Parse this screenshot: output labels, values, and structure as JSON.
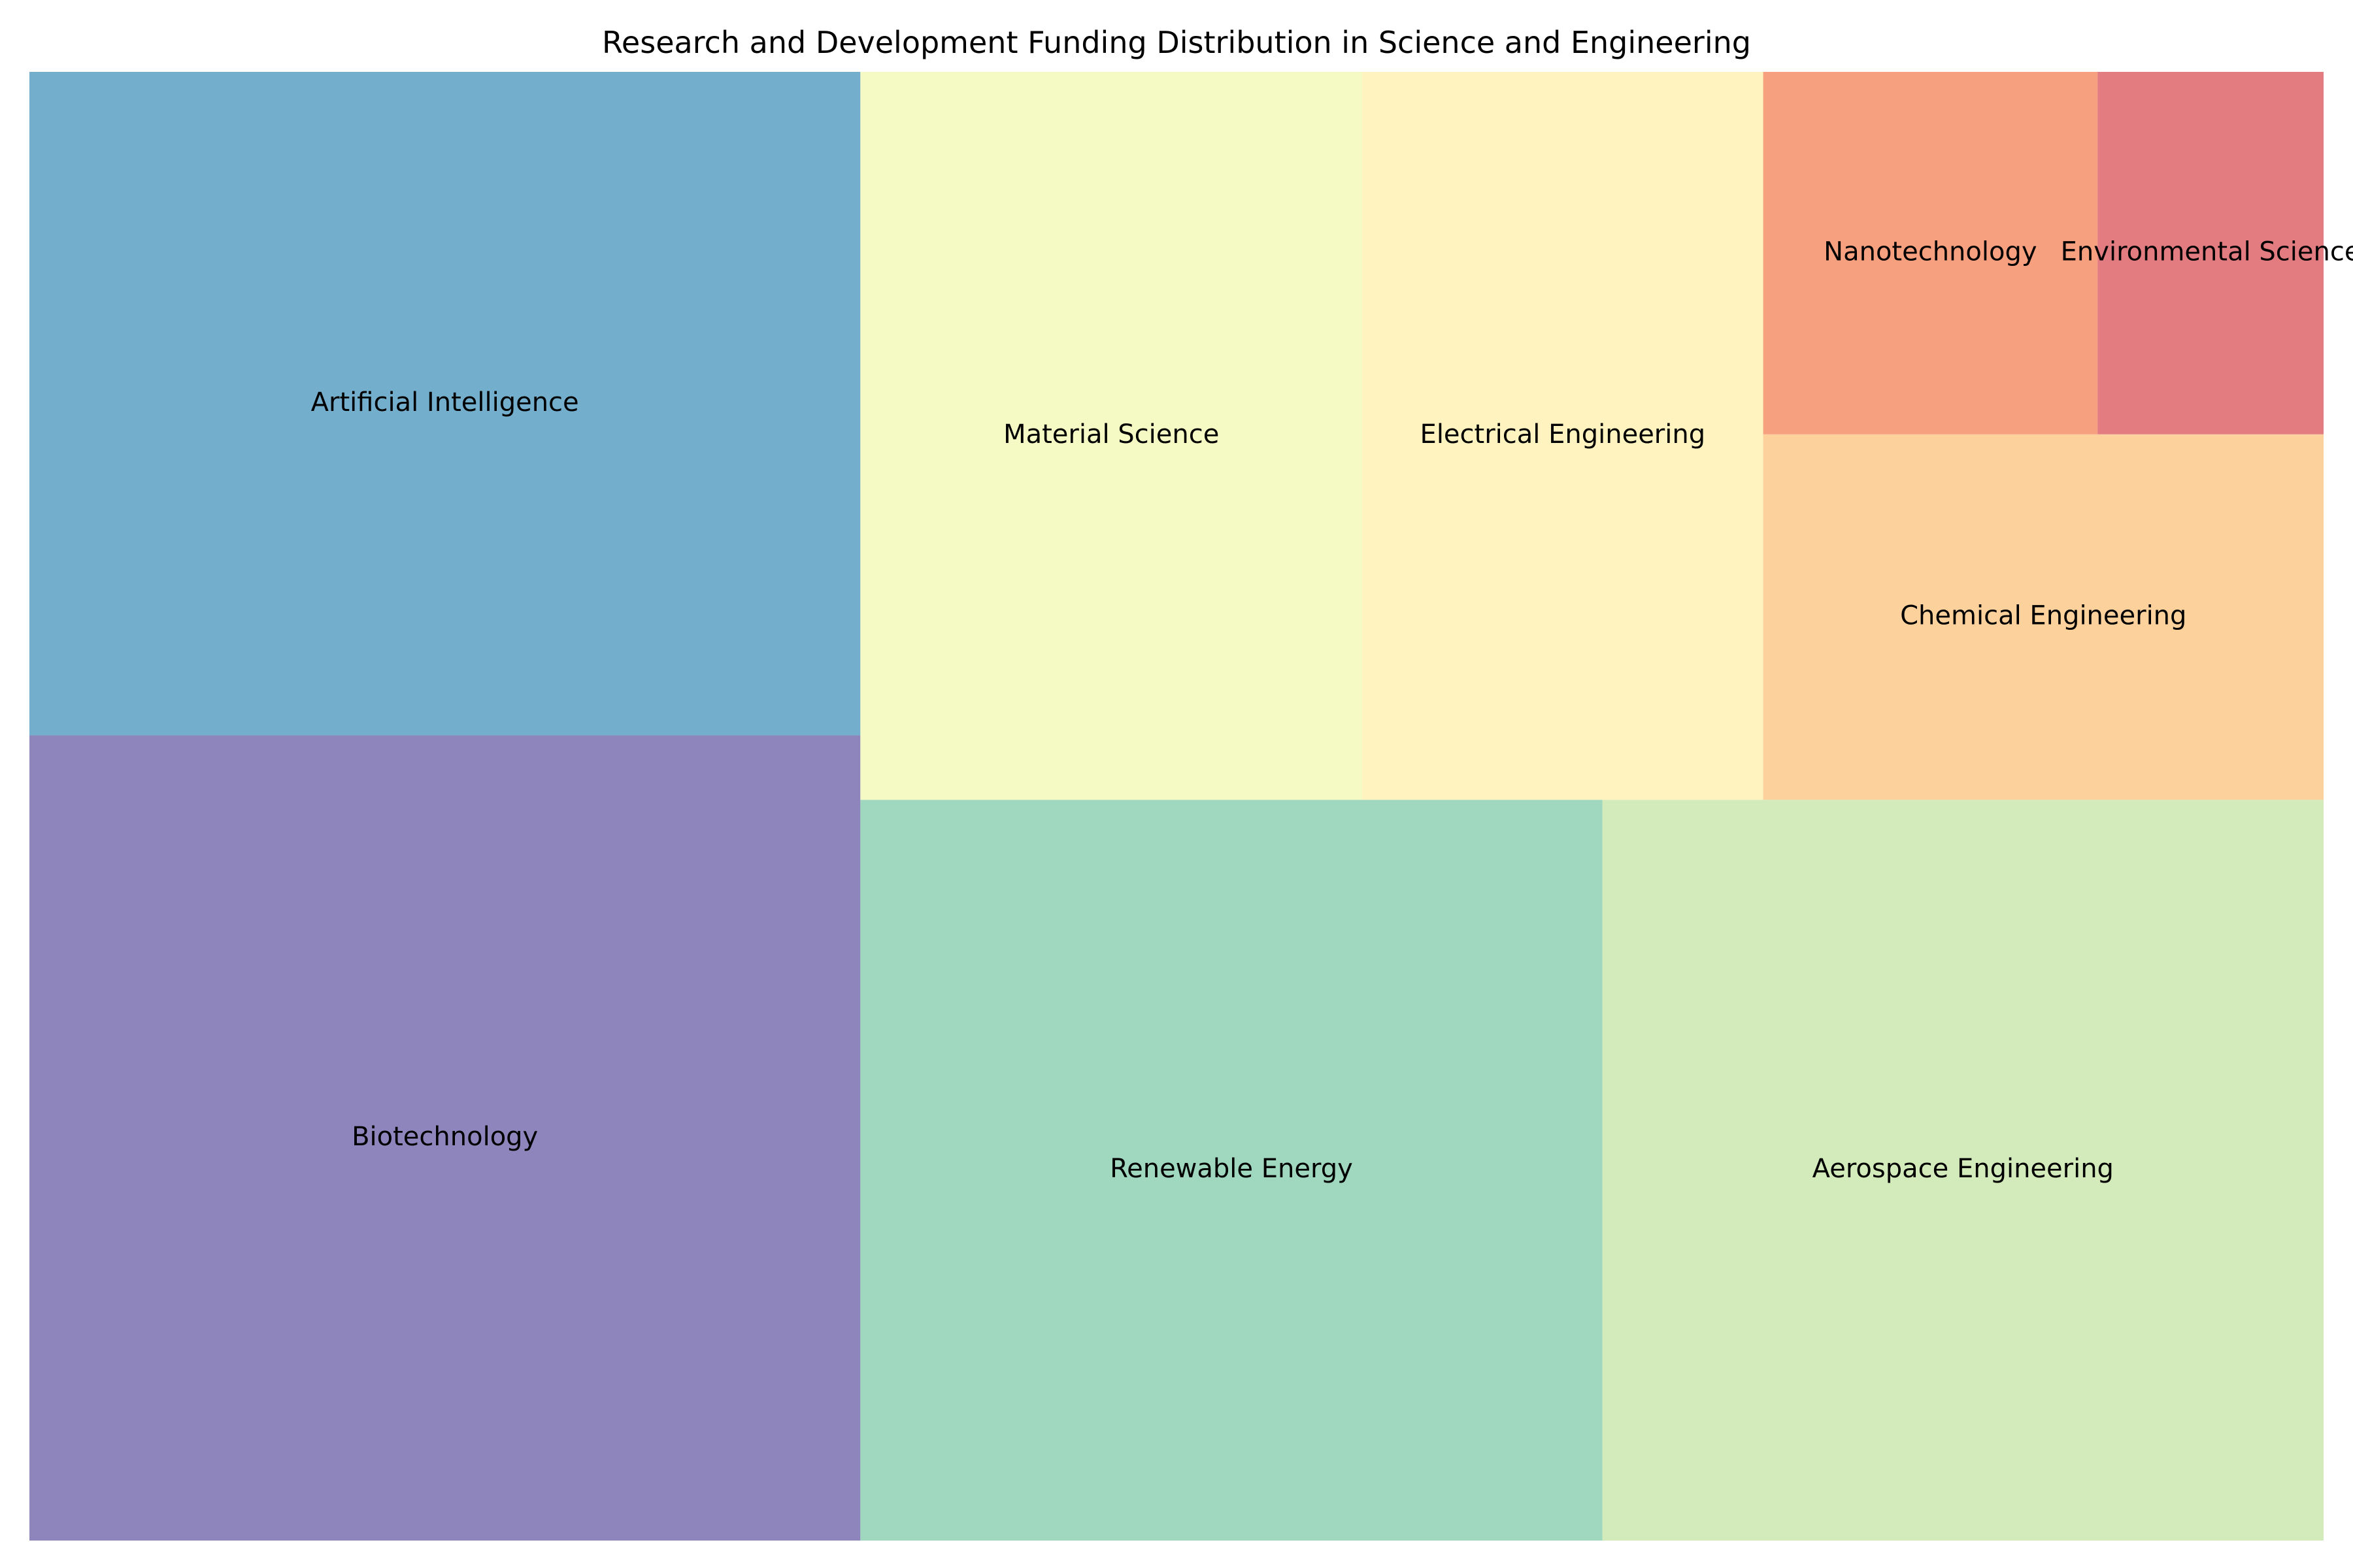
{
  "chart_data": {
    "type": "treemap",
    "title": "Research and Development Funding Distribution in Science and Engineering",
    "categories": [
      "Biotechnology",
      "Artificial Intelligence",
      "Renewable Energy",
      "Aerospace Engineering",
      "Material Science",
      "Electrical Engineering",
      "Chemical Engineering",
      "Nanotechnology",
      "Environmental Science"
    ],
    "values": [
      39.2,
      32.3,
      32.2,
      31.3,
      21.4,
      17.1,
      12.0,
      7.1,
      4.8
    ],
    "colors": [
      "#8e85bd",
      "#73aecd",
      "#9fd7bf",
      "#d3ebba",
      "#f5f9c3",
      "#fff3bf",
      "#fcd19b",
      "#f7a07f",
      "#e37c81"
    ],
    "grid": false,
    "legend": "none"
  }
}
